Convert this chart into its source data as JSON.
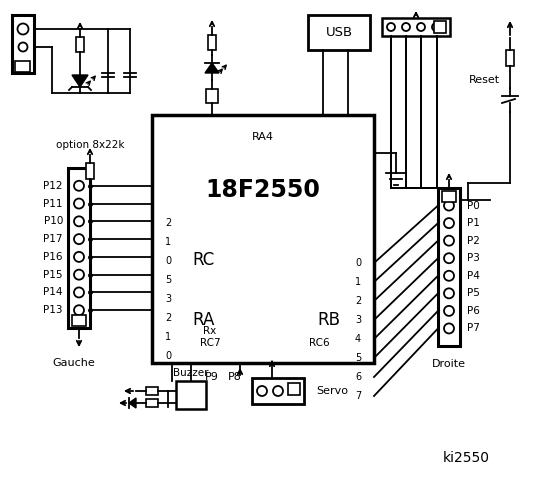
{
  "title": "ki2550",
  "chip_label": "18F2550",
  "chip_sublabel": "RA4",
  "rc_label": "RC",
  "ra_label": "RA",
  "rb_label": "RB",
  "rc_pins_left": [
    "2",
    "1",
    "0",
    "5",
    "3",
    "2",
    "1",
    "0"
  ],
  "rb_pins_right": [
    "0",
    "1",
    "2",
    "3",
    "4",
    "5",
    "6",
    "7"
  ],
  "left_labels": [
    "P12",
    "P11",
    "P10",
    "P17",
    "P16",
    "P15",
    "P14",
    "P13"
  ],
  "right_labels": [
    "P0",
    "P1",
    "P2",
    "P3",
    "P4",
    "P5",
    "P6",
    "P7"
  ],
  "bottom_text_left": "Gauche",
  "bottom_text_right": "Droite",
  "buzzer_label": "Buzzer",
  "p9_label": "P9",
  "p8_label": "P8",
  "servo_label": "Servo",
  "option_label": "option 8x22k",
  "reset_label": "Reset",
  "usb_label": "USB",
  "bg_color": "#ffffff",
  "line_color": "#000000"
}
